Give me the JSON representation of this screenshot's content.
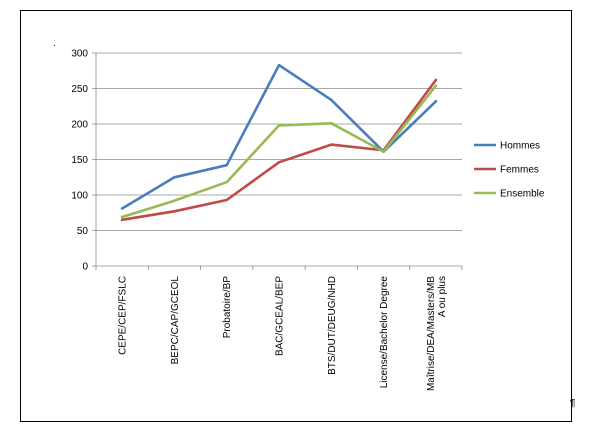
{
  "chart_data": {
    "type": "line",
    "categories": [
      [
        "CEPE/CEP/FSLC"
      ],
      [
        "BEPC/CAP/GCEOL"
      ],
      [
        "Probatoire/BP"
      ],
      [
        "BAC/GCEAL/BEP"
      ],
      [
        "BTS/DUT/DEUG/NHD"
      ],
      [
        "License/Bachelor Degree"
      ],
      [
        "Maîtrise/DEA/Masters/MB",
        "A ou plus"
      ]
    ],
    "series": [
      {
        "name": "Hommes",
        "color": "#4a7ebb",
        "values": [
          81,
          125,
          142,
          283,
          234,
          161,
          232
        ]
      },
      {
        "name": "Femmes",
        "color": "#be4b48",
        "values": [
          65,
          77,
          93,
          146,
          171,
          163,
          262
        ]
      },
      {
        "name": "Ensemble",
        "color": "#98b954",
        "values": [
          69,
          92,
          118,
          198,
          201,
          161,
          254
        ]
      }
    ],
    "yticks": [
      0,
      50,
      100,
      150,
      200,
      250,
      300
    ],
    "ylim": [
      0,
      300
    ],
    "grid": true,
    "legend_position": "right"
  },
  "marks": {
    "top_left_dot": ".",
    "pilcrow": "¶"
  }
}
